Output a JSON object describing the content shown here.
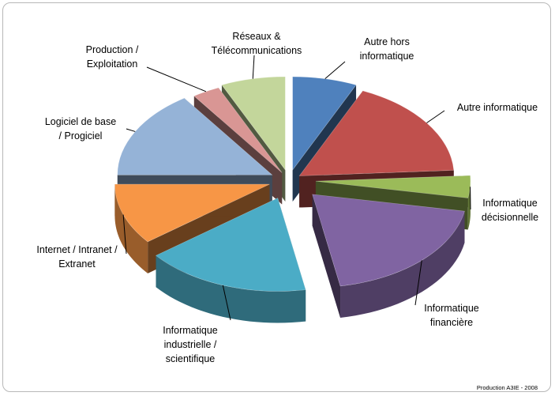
{
  "chart_data": {
    "type": "pie",
    "title": "",
    "categories": [
      "Autre hors informatique",
      "Autre informatique",
      "Informatique décisionnelle",
      "Informatique financière",
      "Informatique industrielle / scientifique",
      "Internet / Intranet / Extranet",
      "Logiciel de base / Progiciel",
      "Production / Exploitation",
      "Réseaux & Télécommunications"
    ],
    "values": [
      7,
      18,
      4,
      20,
      18,
      11,
      16,
      3,
      7
    ],
    "colors": [
      "#4F81BD",
      "#C0504D",
      "#9BBB59",
      "#8064A2",
      "#4BACC6",
      "#F79646",
      "#95B3D7",
      "#D99694",
      "#C3D69B"
    ],
    "legend": "none"
  },
  "labels": {
    "autre_hors_l1": "Autre hors",
    "autre_hors_l2": "informatique",
    "autre_info": "Autre informatique",
    "decisionnelle_l1": "Informatique",
    "decisionnelle_l2": "décisionnelle",
    "financiere_l1": "Informatique",
    "financiere_l2": "financière",
    "industrielle_l1": "Informatique",
    "industrielle_l2": "industrielle /",
    "industrielle_l3": "scientifique",
    "internet_l1": "Internet / Intranet /",
    "internet_l2": "Extranet",
    "logiciel_l1": "Logiciel de base",
    "logiciel_l2": "/ Progiciel",
    "production_l1": "Production /",
    "production_l2": "Exploitation",
    "reseaux_l1": "Réseaux &",
    "reseaux_l2": "Télécommunications"
  },
  "source_note": "Production A3IE - 2008"
}
